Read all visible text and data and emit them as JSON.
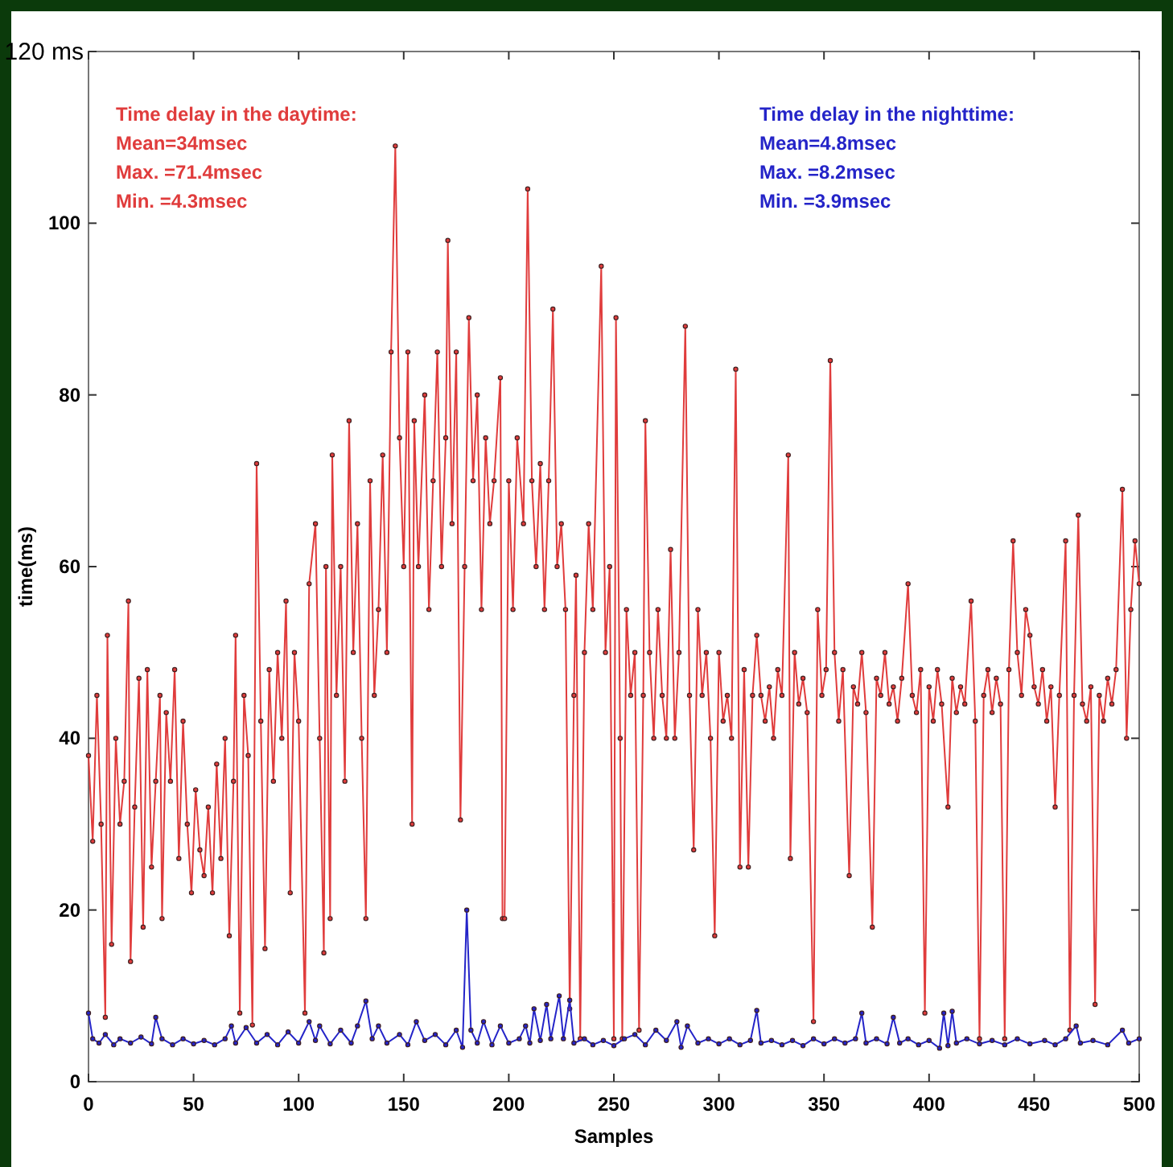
{
  "chart_data": {
    "type": "line",
    "xlabel": "Samples",
    "ylabel": "time(ms)",
    "xlim": [
      0,
      500
    ],
    "xticks": [
      0,
      50,
      100,
      150,
      200,
      250,
      300,
      350,
      400,
      450,
      500
    ],
    "ylim": [
      0,
      120
    ],
    "yticks": [
      0,
      20,
      40,
      60,
      80,
      100,
      {
        "value": 120,
        "label": "120 ms"
      }
    ],
    "grid": false,
    "marker": "circle",
    "line_style": "solid",
    "annotations": [
      "Time delay in the daytime:",
      "Mean=34msec",
      "Max. =71.4msec",
      "Min.  =4.3msec",
      "Time delay in the nighttime:",
      "Mean=4.8msec",
      "Max. =8.2msec",
      "Min.  =3.9msec"
    ],
    "series": [
      {
        "color": "#e03c3c",
        "x": [
          0,
          2,
          4,
          6,
          8,
          9,
          11,
          13,
          15,
          17,
          19,
          20,
          22,
          24,
          26,
          28,
          30,
          32,
          34,
          35,
          37,
          39,
          41,
          43,
          45,
          47,
          49,
          51,
          53,
          55,
          57,
          59,
          61,
          63,
          65,
          67,
          69,
          70,
          72,
          74,
          76,
          78,
          80,
          82,
          84,
          86,
          88,
          90,
          92,
          94,
          96,
          98,
          100,
          103,
          105,
          108,
          110,
          112,
          113,
          115,
          116,
          118,
          120,
          122,
          124,
          126,
          128,
          130,
          132,
          134,
          136,
          138,
          140,
          142,
          144,
          146,
          148,
          150,
          152,
          154,
          155,
          157,
          160,
          162,
          164,
          166,
          168,
          170,
          171,
          173,
          175,
          177,
          179,
          181,
          183,
          185,
          187,
          189,
          191,
          193,
          196,
          197,
          198,
          200,
          202,
          204,
          207,
          209,
          211,
          213,
          215,
          217,
          219,
          221,
          223,
          225,
          227,
          229,
          231,
          232,
          234,
          236,
          238,
          240,
          244,
          246,
          248,
          250,
          251,
          253,
          254,
          256,
          258,
          260,
          262,
          264,
          265,
          267,
          269,
          271,
          273,
          275,
          277,
          279,
          281,
          284,
          286,
          288,
          290,
          292,
          294,
          296,
          298,
          300,
          302,
          304,
          306,
          308,
          310,
          312,
          314,
          316,
          318,
          320,
          322,
          324,
          326,
          328,
          330,
          333,
          334,
          336,
          338,
          340,
          342,
          345,
          347,
          349,
          351,
          353,
          355,
          357,
          359,
          362,
          364,
          366,
          368,
          370,
          373,
          375,
          377,
          379,
          381,
          383,
          385,
          387,
          390,
          392,
          394,
          396,
          398,
          400,
          402,
          404,
          406,
          409,
          411,
          413,
          415,
          417,
          420,
          422,
          424,
          426,
          428,
          430,
          432,
          434,
          436,
          438,
          440,
          442,
          444,
          446,
          448,
          450,
          452,
          454,
          456,
          458,
          460,
          462,
          465,
          467,
          469,
          471,
          473,
          475,
          477,
          479,
          481,
          483,
          485,
          487,
          489,
          492,
          494,
          496,
          498,
          500
        ],
        "values": [
          38,
          28,
          45,
          30,
          7.5,
          52,
          16,
          40,
          30,
          35,
          56,
          14,
          32,
          47,
          18,
          48,
          25,
          35,
          45,
          19,
          43,
          35,
          48,
          26,
          42,
          30,
          22,
          34,
          27,
          24,
          32,
          22,
          37,
          26,
          40,
          17,
          35,
          52,
          8,
          45,
          38,
          6.6,
          72,
          42,
          15.5,
          48,
          35,
          50,
          40,
          56,
          22,
          50,
          42,
          8,
          58,
          65,
          40,
          15,
          60,
          19,
          73,
          45,
          60,
          35,
          77,
          50,
          65,
          40,
          19,
          70,
          45,
          55,
          73,
          50,
          85,
          109,
          75,
          60,
          85,
          30,
          77,
          60,
          80,
          55,
          70,
          85,
          60,
          75,
          98,
          65,
          85,
          30.5,
          60,
          89,
          70,
          80,
          55,
          75,
          65,
          70,
          82,
          19,
          19,
          70,
          55,
          75,
          65,
          104,
          70,
          60,
          72,
          55,
          70,
          90,
          60,
          65,
          55,
          8.5,
          45,
          59,
          5,
          50,
          65,
          55,
          95,
          50,
          60,
          5,
          89,
          40,
          5,
          55,
          45,
          50,
          6,
          45,
          77,
          50,
          40,
          55,
          45,
          40,
          62,
          40,
          50,
          88,
          45,
          27,
          55,
          45,
          50,
          40,
          17,
          50,
          42,
          45,
          40,
          83,
          25,
          48,
          25,
          45,
          52,
          45,
          42,
          46,
          40,
          48,
          45,
          73,
          26,
          50,
          44,
          47,
          43,
          7,
          55,
          45,
          48,
          84,
          50,
          42,
          48,
          24,
          46,
          44,
          50,
          43,
          18,
          47,
          45,
          50,
          44,
          46,
          42,
          47,
          58,
          45,
          43,
          48,
          8,
          46,
          42,
          48,
          44,
          32,
          47,
          43,
          46,
          44,
          56,
          42,
          5,
          45,
          48,
          43,
          47,
          44,
          5,
          48,
          63,
          50,
          45,
          55,
          52,
          46,
          44,
          48,
          42,
          46,
          32,
          45,
          63,
          6,
          45,
          66,
          44,
          42,
          46,
          9,
          45,
          42,
          47,
          44,
          48,
          69,
          40,
          55,
          63,
          58
        ]
      },
      {
        "color": "#2424c8",
        "x": [
          0,
          2,
          5,
          8,
          12,
          15,
          20,
          25,
          30,
          32,
          35,
          40,
          45,
          50,
          55,
          60,
          65,
          68,
          70,
          75,
          80,
          85,
          90,
          95,
          100,
          105,
          108,
          110,
          115,
          120,
          125,
          128,
          132,
          135,
          138,
          142,
          148,
          152,
          156,
          160,
          165,
          170,
          175,
          178,
          180,
          182,
          185,
          188,
          192,
          196,
          200,
          205,
          208,
          210,
          212,
          215,
          218,
          220,
          224,
          226,
          229,
          231,
          236,
          240,
          245,
          250,
          255,
          260,
          265,
          270,
          275,
          280,
          282,
          285,
          290,
          295,
          300,
          305,
          310,
          315,
          318,
          320,
          325,
          330,
          335,
          340,
          345,
          350,
          355,
          360,
          365,
          368,
          370,
          375,
          380,
          383,
          386,
          390,
          395,
          400,
          405,
          407,
          409,
          411,
          413,
          418,
          424,
          430,
          436,
          442,
          448,
          455,
          460,
          465,
          470,
          472,
          478,
          485,
          492,
          495,
          500
        ],
        "values": [
          8,
          5,
          4.5,
          5.5,
          4.3,
          5,
          4.5,
          5.2,
          4.4,
          7.5,
          5,
          4.3,
          5,
          4.4,
          4.8,
          4.3,
          5,
          6.5,
          4.5,
          6.3,
          4.5,
          5.5,
          4.3,
          5.8,
          4.5,
          7,
          4.8,
          6.5,
          4.4,
          6,
          4.5,
          6.5,
          9.4,
          5,
          6.5,
          4.5,
          5.5,
          4.3,
          7,
          4.8,
          5.5,
          4.3,
          6,
          4,
          20,
          6,
          4.5,
          7,
          4.3,
          6.5,
          4.5,
          5,
          6.5,
          4.5,
          8.5,
          4.8,
          9,
          5,
          10,
          5,
          9.5,
          4.5,
          5,
          4.3,
          4.8,
          4.2,
          5,
          5.5,
          4.3,
          6,
          4.8,
          7,
          4,
          6.5,
          4.5,
          5,
          4.4,
          5,
          4.3,
          4.8,
          8.3,
          4.5,
          4.8,
          4.3,
          4.8,
          4.2,
          5,
          4.4,
          5,
          4.5,
          5,
          8,
          4.5,
          5,
          4.4,
          7.5,
          4.5,
          5,
          4.3,
          4.8,
          3.9,
          8,
          4.2,
          8.2,
          4.5,
          5,
          4.4,
          4.8,
          4.3,
          5,
          4.4,
          4.8,
          4.3,
          5,
          6.5,
          4.5,
          4.8,
          4.3,
          6,
          4.5,
          5
        ]
      }
    ]
  }
}
